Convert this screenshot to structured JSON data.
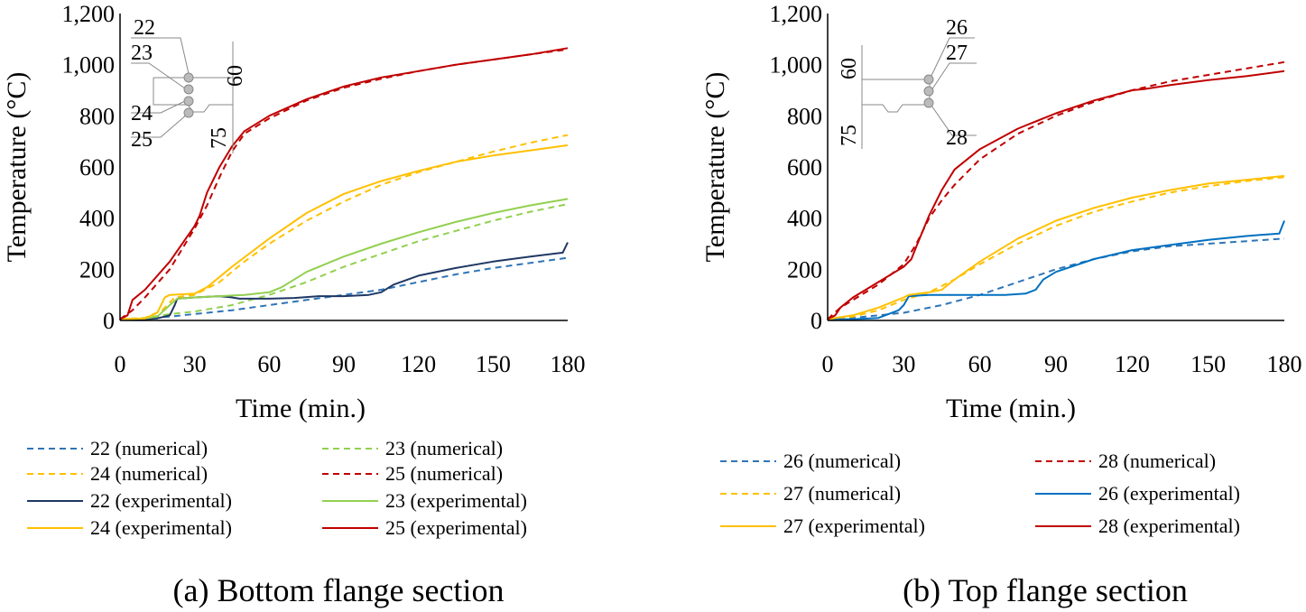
{
  "chart_data": [
    {
      "type": "line",
      "caption": "(a) Bottom flange section",
      "xlabel": "Time (min.)",
      "ylabel": "Temperature (°C)",
      "xlim": [
        0,
        180
      ],
      "ylim": [
        0,
        1200
      ],
      "x_ticks": [
        "0",
        "30",
        "60",
        "90",
        "120",
        "150",
        "180"
      ],
      "y_ticks": [
        "0",
        "200",
        "400",
        "600",
        "800",
        "1,000",
        "1,200"
      ],
      "legend_placement": "bottom, two columns",
      "inset_labels": [
        "22",
        "23",
        "24",
        "25",
        "60",
        "75"
      ],
      "series": [
        {
          "name": "22 (numerical)",
          "style": "dashed",
          "color": "#2e75b6",
          "points": [
            [
              0,
              5
            ],
            [
              10,
              8
            ],
            [
              20,
              15
            ],
            [
              30,
              25
            ],
            [
              45,
              40
            ],
            [
              60,
              60
            ],
            [
              75,
              80
            ],
            [
              90,
              100
            ],
            [
              105,
              120
            ],
            [
              120,
              150
            ],
            [
              135,
              180
            ],
            [
              150,
              205
            ],
            [
              165,
              225
            ],
            [
              180,
              245
            ]
          ]
        },
        {
          "name": "23 (numerical)",
          "style": "dashed",
          "color": "#92d050",
          "points": [
            [
              0,
              5
            ],
            [
              10,
              10
            ],
            [
              20,
              25
            ],
            [
              30,
              35
            ],
            [
              45,
              60
            ],
            [
              60,
              100
            ],
            [
              75,
              150
            ],
            [
              90,
              210
            ],
            [
              105,
              260
            ],
            [
              120,
              310
            ],
            [
              135,
              350
            ],
            [
              150,
              390
            ],
            [
              165,
              425
            ],
            [
              180,
              455
            ]
          ]
        },
        {
          "name": "24 (numerical)",
          "style": "dashed",
          "color": "#ffc000",
          "points": [
            [
              0,
              5
            ],
            [
              10,
              10
            ],
            [
              17,
              40
            ],
            [
              22,
              90
            ],
            [
              30,
              100
            ],
            [
              40,
              150
            ],
            [
              50,
              230
            ],
            [
              60,
              300
            ],
            [
              75,
              390
            ],
            [
              90,
              465
            ],
            [
              105,
              530
            ],
            [
              120,
              580
            ],
            [
              135,
              620
            ],
            [
              150,
              660
            ],
            [
              165,
              695
            ],
            [
              180,
              725
            ]
          ]
        },
        {
          "name": "25 (numerical)",
          "style": "dashed",
          "color": "#c00000",
          "points": [
            [
              0,
              5
            ],
            [
              5,
              40
            ],
            [
              10,
              90
            ],
            [
              20,
              200
            ],
            [
              30,
              360
            ],
            [
              35,
              450
            ],
            [
              40,
              560
            ],
            [
              45,
              660
            ],
            [
              50,
              730
            ],
            [
              60,
              790
            ],
            [
              75,
              860
            ],
            [
              90,
              910
            ],
            [
              105,
              945
            ],
            [
              120,
              975
            ],
            [
              135,
              1000
            ],
            [
              150,
              1020
            ],
            [
              165,
              1040
            ],
            [
              180,
              1060
            ]
          ]
        },
        {
          "name": "22 (experimental)",
          "style": "solid",
          "color": "#1f3864",
          "points": [
            [
              0,
              5
            ],
            [
              10,
              5
            ],
            [
              15,
              8
            ],
            [
              20,
              20
            ],
            [
              22,
              60
            ],
            [
              23,
              85
            ],
            [
              30,
              90
            ],
            [
              40,
              95
            ],
            [
              45,
              90
            ],
            [
              48,
              85
            ],
            [
              60,
              85
            ],
            [
              70,
              88
            ],
            [
              80,
              95
            ],
            [
              90,
              95
            ],
            [
              100,
              100
            ],
            [
              105,
              110
            ],
            [
              110,
              140
            ],
            [
              120,
              175
            ],
            [
              135,
              205
            ],
            [
              150,
              230
            ],
            [
              165,
              250
            ],
            [
              178,
              265
            ],
            [
              180,
              305
            ]
          ]
        },
        {
          "name": "23 (experimental)",
          "style": "solid",
          "color": "#92d050",
          "points": [
            [
              0,
              5
            ],
            [
              10,
              8
            ],
            [
              15,
              15
            ],
            [
              20,
              60
            ],
            [
              23,
              85
            ],
            [
              30,
              90
            ],
            [
              40,
              95
            ],
            [
              50,
              100
            ],
            [
              60,
              110
            ],
            [
              65,
              130
            ],
            [
              75,
              190
            ],
            [
              90,
              250
            ],
            [
              105,
              300
            ],
            [
              120,
              345
            ],
            [
              135,
              385
            ],
            [
              150,
              420
            ],
            [
              165,
              450
            ],
            [
              180,
              475
            ]
          ]
        },
        {
          "name": "24 (experimental)",
          "style": "solid",
          "color": "#ffc000",
          "points": [
            [
              0,
              5
            ],
            [
              10,
              8
            ],
            [
              15,
              30
            ],
            [
              18,
              90
            ],
            [
              20,
              100
            ],
            [
              30,
              105
            ],
            [
              35,
              130
            ],
            [
              45,
              210
            ],
            [
              60,
              320
            ],
            [
              75,
              420
            ],
            [
              90,
              495
            ],
            [
              105,
              545
            ],
            [
              120,
              585
            ],
            [
              135,
              620
            ],
            [
              150,
              645
            ],
            [
              165,
              665
            ],
            [
              180,
              685
            ]
          ]
        },
        {
          "name": "25 (experimental)",
          "style": "solid",
          "color": "#c00000",
          "points": [
            [
              0,
              5
            ],
            [
              3,
              20
            ],
            [
              5,
              80
            ],
            [
              10,
              120
            ],
            [
              20,
              230
            ],
            [
              30,
              370
            ],
            [
              32,
              410
            ],
            [
              35,
              500
            ],
            [
              40,
              600
            ],
            [
              45,
              680
            ],
            [
              50,
              740
            ],
            [
              60,
              800
            ],
            [
              75,
              865
            ],
            [
              90,
              915
            ],
            [
              105,
              950
            ],
            [
              120,
              975
            ],
            [
              135,
              1000
            ],
            [
              150,
              1020
            ],
            [
              165,
              1040
            ],
            [
              180,
              1065
            ]
          ]
        }
      ]
    },
    {
      "type": "line",
      "caption": "(b) Top flange section",
      "xlabel": "Time (min.)",
      "ylabel": "Temperature (°C)",
      "xlim": [
        0,
        180
      ],
      "ylim": [
        0,
        1200
      ],
      "x_ticks": [
        "0",
        "30",
        "60",
        "90",
        "120",
        "150",
        "180"
      ],
      "y_ticks": [
        "0",
        "200",
        "400",
        "600",
        "800",
        "1,000",
        "1,200"
      ],
      "legend_placement": "bottom, two columns",
      "inset_labels": [
        "26",
        "27",
        "28",
        "60",
        "75"
      ],
      "series": [
        {
          "name": "26 (numerical)",
          "style": "dashed",
          "color": "#2e75b6",
          "points": [
            [
              0,
              5
            ],
            [
              10,
              10
            ],
            [
              20,
              20
            ],
            [
              30,
              30
            ],
            [
              45,
              60
            ],
            [
              60,
              100
            ],
            [
              75,
              150
            ],
            [
              90,
              200
            ],
            [
              105,
              240
            ],
            [
              120,
              270
            ],
            [
              135,
              290
            ],
            [
              150,
              300
            ],
            [
              165,
              310
            ],
            [
              180,
              320
            ]
          ]
        },
        {
          "name": "28 (numerical)",
          "style": "dashed",
          "color": "#c00000",
          "points": [
            [
              0,
              5
            ],
            [
              5,
              50
            ],
            [
              10,
              80
            ],
            [
              20,
              140
            ],
            [
              30,
              220
            ],
            [
              35,
              300
            ],
            [
              40,
              400
            ],
            [
              45,
              470
            ],
            [
              50,
              530
            ],
            [
              60,
              630
            ],
            [
              75,
              730
            ],
            [
              90,
              800
            ],
            [
              105,
              855
            ],
            [
              120,
              900
            ],
            [
              135,
              935
            ],
            [
              150,
              960
            ],
            [
              165,
              985
            ],
            [
              180,
              1010
            ]
          ]
        },
        {
          "name": "27 (numerical)",
          "style": "dashed",
          "color": "#ffc000",
          "points": [
            [
              0,
              5
            ],
            [
              10,
              15
            ],
            [
              20,
              40
            ],
            [
              30,
              80
            ],
            [
              40,
              110
            ],
            [
              50,
              160
            ],
            [
              60,
              220
            ],
            [
              75,
              300
            ],
            [
              90,
              370
            ],
            [
              105,
              425
            ],
            [
              120,
              465
            ],
            [
              135,
              500
            ],
            [
              150,
              525
            ],
            [
              165,
              545
            ],
            [
              180,
              560
            ]
          ]
        },
        {
          "name": "26 (experimental)",
          "style": "solid",
          "color": "#0070c0",
          "points": [
            [
              0,
              5
            ],
            [
              10,
              5
            ],
            [
              20,
              10
            ],
            [
              28,
              40
            ],
            [
              30,
              60
            ],
            [
              32,
              95
            ],
            [
              40,
              100
            ],
            [
              50,
              100
            ],
            [
              60,
              100
            ],
            [
              70,
              100
            ],
            [
              78,
              105
            ],
            [
              82,
              120
            ],
            [
              85,
              160
            ],
            [
              90,
              190
            ],
            [
              105,
              240
            ],
            [
              120,
              275
            ],
            [
              135,
              295
            ],
            [
              150,
              315
            ],
            [
              165,
              330
            ],
            [
              178,
              340
            ],
            [
              180,
              390
            ]
          ]
        },
        {
          "name": "27 (experimental)",
          "style": "solid",
          "color": "#ffc000",
          "points": [
            [
              0,
              5
            ],
            [
              10,
              20
            ],
            [
              20,
              50
            ],
            [
              30,
              90
            ],
            [
              32,
              100
            ],
            [
              40,
              110
            ],
            [
              45,
              120
            ],
            [
              50,
              160
            ],
            [
              60,
              230
            ],
            [
              75,
              320
            ],
            [
              90,
              390
            ],
            [
              105,
              440
            ],
            [
              120,
              480
            ],
            [
              135,
              510
            ],
            [
              150,
              535
            ],
            [
              165,
              550
            ],
            [
              180,
              565
            ]
          ]
        },
        {
          "name": "28 (experimental)",
          "style": "solid",
          "color": "#c00000",
          "points": [
            [
              0,
              5
            ],
            [
              3,
              20
            ],
            [
              5,
              50
            ],
            [
              10,
              90
            ],
            [
              20,
              150
            ],
            [
              30,
              210
            ],
            [
              33,
              240
            ],
            [
              35,
              290
            ],
            [
              40,
              410
            ],
            [
              45,
              510
            ],
            [
              50,
              590
            ],
            [
              60,
              670
            ],
            [
              75,
              750
            ],
            [
              90,
              810
            ],
            [
              105,
              860
            ],
            [
              120,
              900
            ],
            [
              125,
              905
            ],
            [
              135,
              920
            ],
            [
              150,
              940
            ],
            [
              165,
              955
            ],
            [
              180,
              975
            ]
          ]
        }
      ]
    }
  ]
}
